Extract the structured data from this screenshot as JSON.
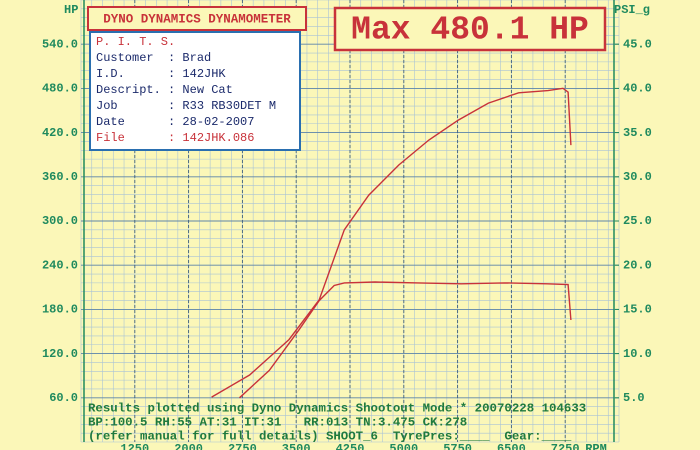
{
  "chart_data": {
    "type": "line",
    "unit_left": "HP",
    "unit_right": "PSI_g",
    "xlabel": "RPM",
    "xlim": [
      500,
      8000
    ],
    "xticks": [
      1250,
      2000,
      2750,
      3500,
      4250,
      5000,
      5750,
      6500,
      7250
    ],
    "ylim": [
      0,
      600
    ],
    "yticks": [
      {
        "value": 60,
        "label": "60.0"
      },
      {
        "value": 120,
        "label": "120.0"
      },
      {
        "value": 180,
        "label": "180.0"
      },
      {
        "value": 240,
        "label": "240.0"
      },
      {
        "value": 300,
        "label": "300.0"
      },
      {
        "value": 360,
        "label": "360.0"
      },
      {
        "value": 420,
        "label": "420.0"
      },
      {
        "value": 480,
        "label": "480.0"
      },
      {
        "value": 540,
        "label": "540.0"
      }
    ],
    "y2lim": [
      0,
      50
    ],
    "y2ticks": [
      {
        "value": 5,
        "label": "5.0"
      },
      {
        "value": 10,
        "label": "10.0"
      },
      {
        "value": 15,
        "label": "15.0"
      },
      {
        "value": 20,
        "label": "20.0"
      },
      {
        "value": 25,
        "label": "25.0"
      },
      {
        "value": 30,
        "label": "30.0"
      },
      {
        "value": 35,
        "label": "35.0"
      },
      {
        "value": 40,
        "label": "40.0"
      },
      {
        "value": 45,
        "label": "45.0"
      }
    ],
    "grid": true,
    "series": [
      {
        "color": "#c8323a",
        "x": [
          2320,
          2850,
          3400,
          3820,
          4170,
          4510,
          4930,
          5350,
          5760,
          6180,
          6600,
          7010,
          7220,
          7290,
          7330
        ],
        "values": [
          61,
          91,
          139,
          193,
          288,
          335,
          376,
          410,
          437,
          460,
          474,
          477,
          480.1,
          475,
          403
        ]
      },
      {
        "color": "#c8323a",
        "axis": "y2",
        "x": [
          2710,
          3125,
          3540,
          3820,
          4030,
          4170,
          4600,
          5200,
          5800,
          6400,
          7000,
          7290,
          7330
        ],
        "values": [
          5.0,
          8.1,
          12.7,
          16.0,
          17.7,
          18.0,
          18.1,
          18.0,
          17.9,
          18.0,
          17.9,
          17.8,
          13.8
        ]
      }
    ]
  },
  "header": {
    "title": "DYNO DYNAMICS DYNAMOMETER",
    "max_label": "Max 480.1 HP"
  },
  "info": {
    "heading": "P. I. T. S.",
    "rows": [
      "Customer  : Brad",
      "I.D.      : 142JHK",
      "Descript. : New Cat",
      "Job       : R33 RB30DET M",
      "Date      : 28-02-2007"
    ],
    "file": "File      : 142JHK.086"
  },
  "footer": {
    "lines": [
      "Results plotted using Dyno Dynamics Shootout Mode * 20070228 104633",
      "BP:100.5 RH:55 AT:31 IT:31   RR:013 TN:3.475 CK:278",
      "(refer manual for full details) SHOOT_6  TyrePres:____  Gear:____"
    ]
  }
}
